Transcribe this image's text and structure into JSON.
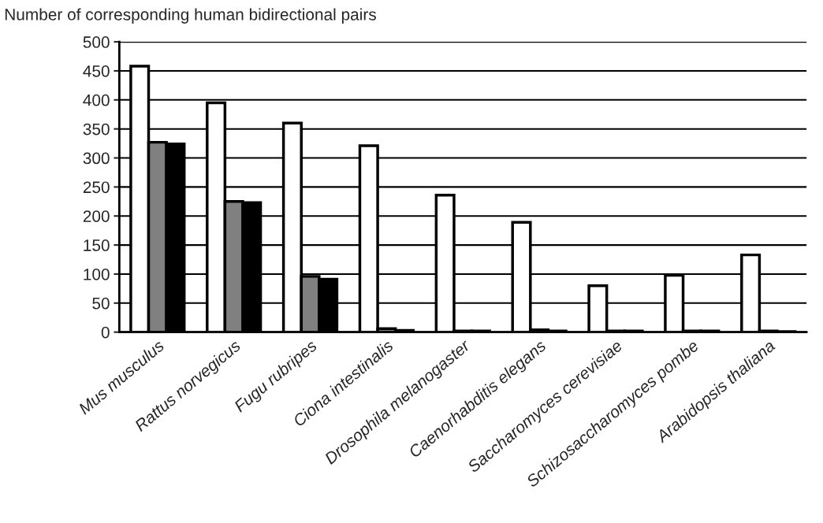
{
  "chart_data": {
    "type": "bar",
    "title": "Number of corresponding human bidirectional pairs",
    "categories": [
      "Mus musculus",
      "Rattus norvegicus",
      "Fugu rubripes",
      "Ciona intestinalis",
      "Drosophila melanogaster",
      "Caenorhabditis elegans",
      "Saccharomyces cerevisiae",
      "Schizosaccharomyces pombe",
      "Arabidopsis thaliana"
    ],
    "series": [
      {
        "color": "#ffffff",
        "values": [
          458,
          395,
          360,
          321,
          236,
          189,
          80,
          98,
          133
        ]
      },
      {
        "color": "#808080",
        "values": [
          327,
          225,
          96,
          6,
          2,
          4,
          2,
          2,
          2
        ]
      },
      {
        "color": "#000000",
        "values": [
          324,
          223,
          91,
          3,
          2,
          2,
          2,
          2,
          1
        ]
      }
    ],
    "ylim": [
      0,
      500
    ],
    "yticks": [
      0,
      50,
      100,
      150,
      200,
      250,
      300,
      350,
      400,
      450,
      500
    ],
    "grid": "y"
  }
}
